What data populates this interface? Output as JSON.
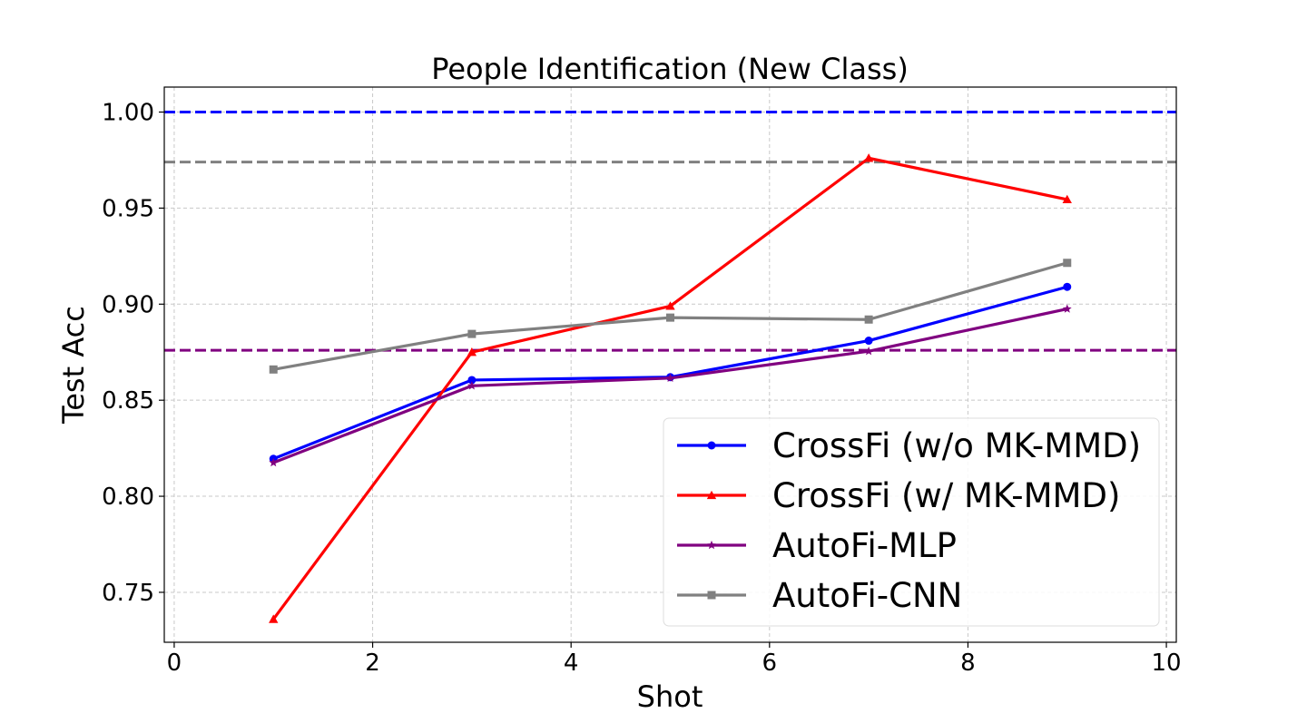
{
  "chart_data": {
    "type": "line",
    "title": "People Identification (New Class)",
    "xlabel": "Shot",
    "ylabel": "Test Acc",
    "xlim": [
      -0.1,
      10.1
    ],
    "ylim": [
      0.724,
      1.013
    ],
    "xticks": [
      0,
      2,
      4,
      6,
      8,
      10
    ],
    "xtick_labels": [
      "0",
      "2",
      "4",
      "6",
      "8",
      "10"
    ],
    "yticks": [
      0.75,
      0.8,
      0.85,
      0.9,
      0.95,
      1.0
    ],
    "ytick_labels": [
      "0.75",
      "0.80",
      "0.85",
      "0.90",
      "0.95",
      "1.00"
    ],
    "grid": true,
    "legend_position": "lower-right",
    "x": [
      1,
      3,
      5,
      7,
      9
    ],
    "series": [
      {
        "name": "CrossFi (w/o MK-MMD)",
        "color": "#0000ff",
        "marker": "circle",
        "values": [
          0.8195,
          0.8605,
          0.862,
          0.881,
          0.909
        ]
      },
      {
        "name": "CrossFi (w/ MK-MMD)",
        "color": "#ff0000",
        "marker": "triangle",
        "values": [
          0.736,
          0.875,
          0.899,
          0.976,
          0.9545
        ]
      },
      {
        "name": "AutoFi-MLP",
        "color": "#800080",
        "marker": "star",
        "values": [
          0.8175,
          0.8575,
          0.8615,
          0.8755,
          0.8975
        ]
      },
      {
        "name": "AutoFi-CNN",
        "color": "#808080",
        "marker": "square",
        "values": [
          0.866,
          0.8845,
          0.893,
          0.892,
          0.9215
        ]
      }
    ],
    "reference_lines": [
      {
        "y": 1.0,
        "color": "#0000ff",
        "style": "dashed"
      },
      {
        "y": 0.974,
        "color": "#808080",
        "style": "dashed"
      },
      {
        "y": 0.876,
        "color": "#800080",
        "style": "dashed"
      }
    ]
  }
}
